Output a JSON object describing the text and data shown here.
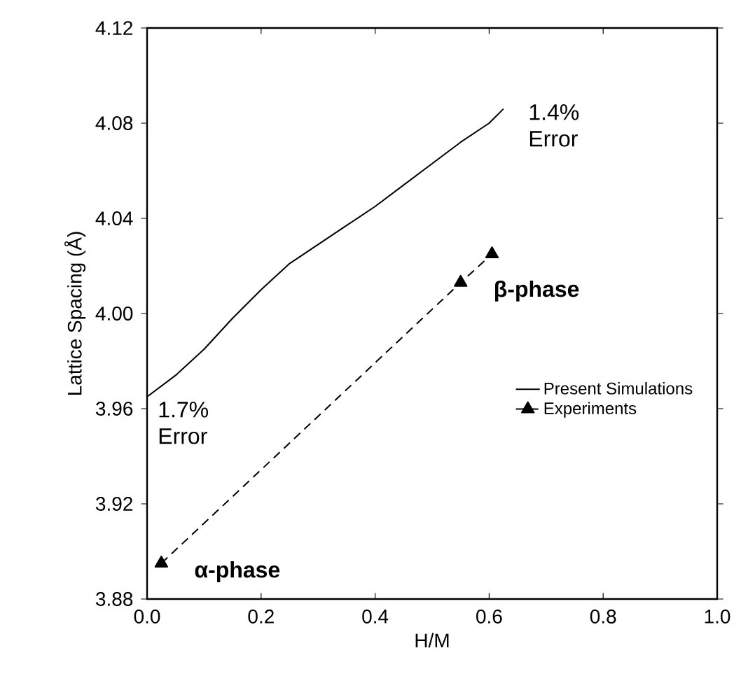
{
  "chart_data": {
    "type": "line",
    "xlabel": "H/M",
    "ylabel": "Lattice Spacing (Å)",
    "xlim": [
      0,
      1
    ],
    "ylim": [
      3.88,
      4.12
    ],
    "xticks": [
      {
        "value": 0,
        "label": "0.0"
      },
      {
        "value": 0.2,
        "label": "0.2"
      },
      {
        "value": 0.4,
        "label": "0.4"
      },
      {
        "value": 0.6,
        "label": "0.6"
      },
      {
        "value": 0.8,
        "label": "0.8"
      },
      {
        "value": 1,
        "label": "1.0"
      }
    ],
    "yticks": [
      3.88,
      3.92,
      3.96,
      {
        "value": 4.0,
        "label": "4.00"
      },
      4.04,
      4.08,
      4.12
    ],
    "legend": "right",
    "grid": false,
    "series": [
      {
        "name": "Present Simulations",
        "color": "#000000",
        "line_style": "solid",
        "marker": "none",
        "x": [
          0,
          0.05,
          0.1,
          0.15,
          0.2,
          0.25,
          0.3,
          0.35,
          0.4,
          0.45,
          0.5,
          0.55,
          0.6,
          0.625
        ],
        "values": [
          3.965,
          3.974,
          3.985,
          3.998,
          4.01,
          4.021,
          4.029,
          4.037,
          4.045,
          4.054,
          4.063,
          4.072,
          4.08,
          4.086
        ]
      },
      {
        "name": "Experiments",
        "color": "#000000",
        "line_style": "dashed",
        "marker": "triangle",
        "x": [
          0.025,
          0.55,
          0.605
        ],
        "values": [
          3.895,
          4.013,
          4.025
        ]
      }
    ],
    "annotations": [
      "1.4% Error",
      "1.7% Error",
      {
        "text": "**α-phase**",
        "x": 0.025,
        "y": 3.895
      },
      {
        "text": "**β-phase**",
        "x": 0.55,
        "y": 4.013
      }
    ]
  }
}
